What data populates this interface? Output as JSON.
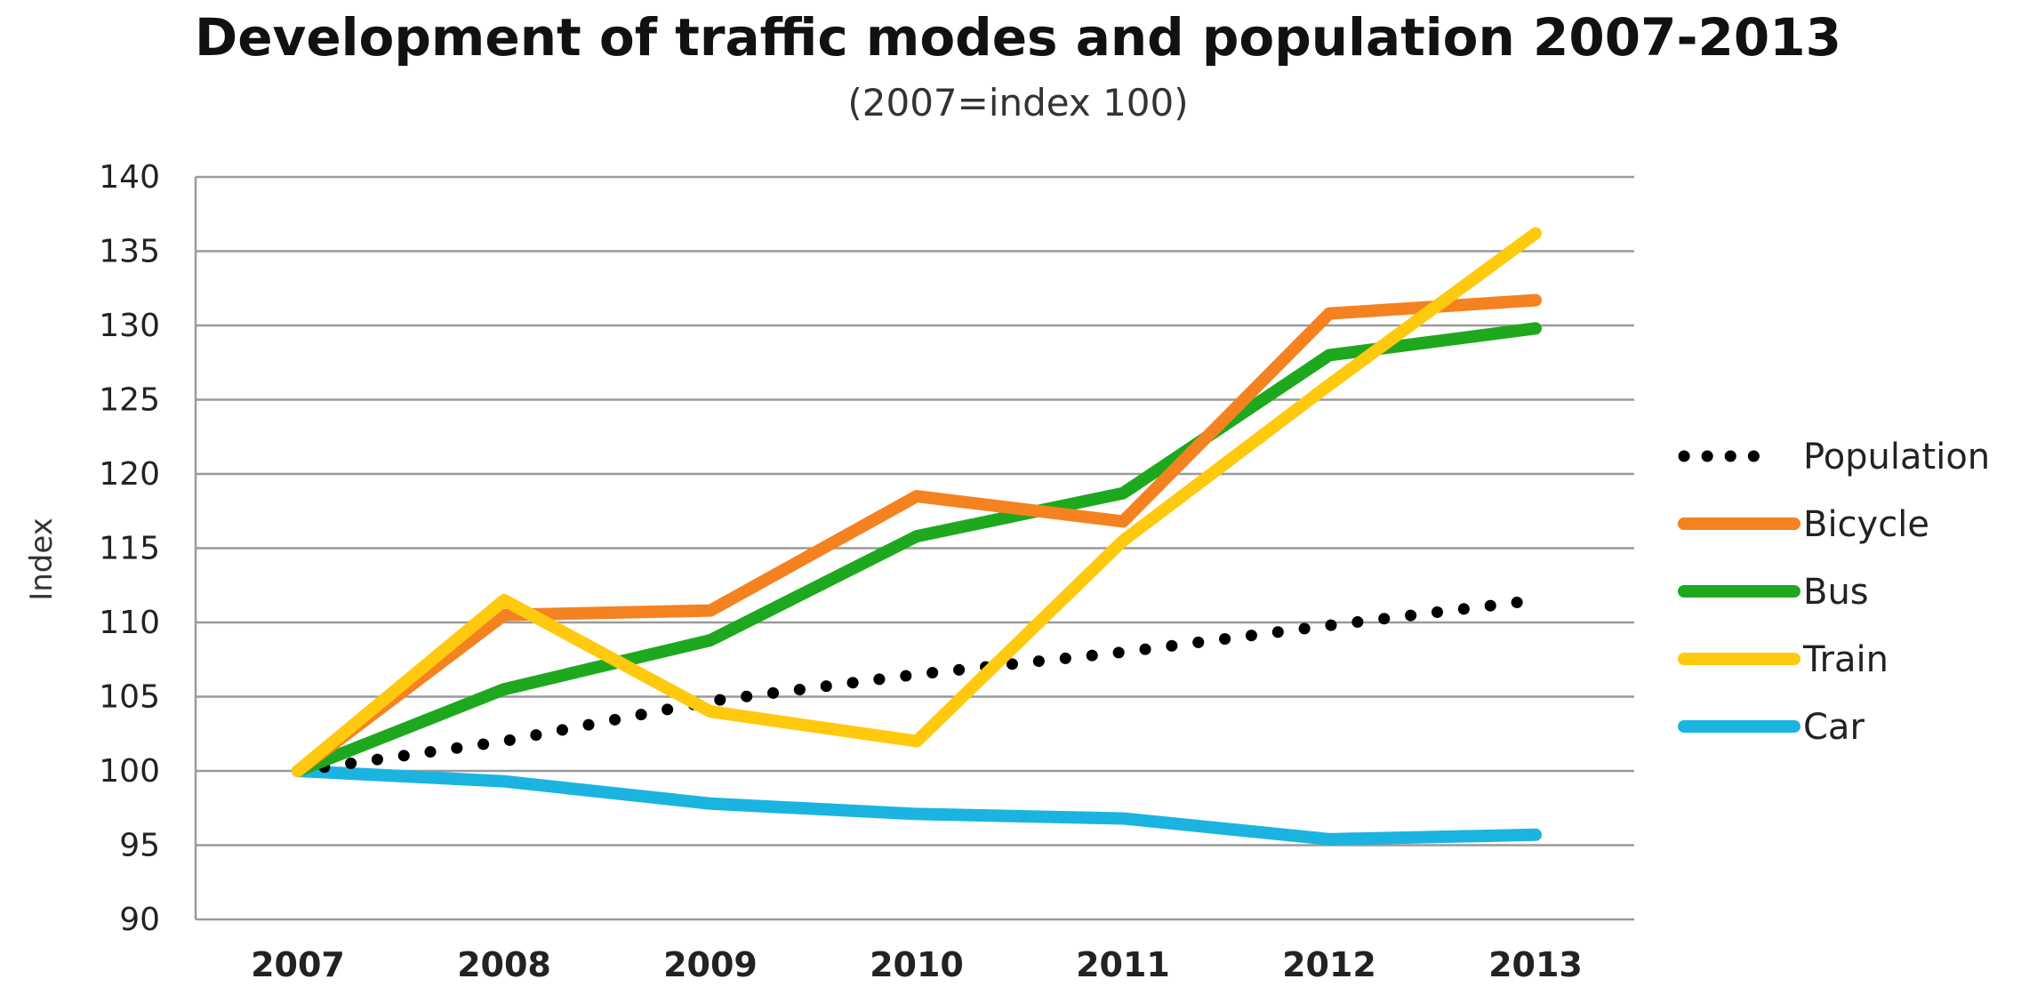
{
  "chart_data": {
    "type": "line",
    "title": "Development of traffic modes and population 2007-2013",
    "subtitle": "(2007=index 100)",
    "xlabel": "",
    "ylabel": "Index",
    "categories": [
      "2007",
      "2008",
      "2009",
      "2010",
      "2011",
      "2012",
      "2013"
    ],
    "ylim": [
      90,
      140
    ],
    "yticks": [
      90,
      95,
      100,
      105,
      110,
      115,
      120,
      125,
      130,
      135,
      140
    ],
    "grid": true,
    "legend_position": "right",
    "series": [
      {
        "name": "Population",
        "color": "#000000",
        "style": "dotted",
        "values": [
          100,
          102,
          104.7,
          106.5,
          108,
          109.8,
          111.5
        ]
      },
      {
        "name": "Bicycle",
        "color": "#F58220",
        "style": "solid",
        "values": [
          100,
          110.5,
          110.8,
          118.5,
          116.8,
          130.8,
          131.7
        ]
      },
      {
        "name": "Bus",
        "color": "#1EA81E",
        "style": "solid",
        "values": [
          100,
          105.5,
          108.8,
          115.8,
          118.7,
          128,
          129.8
        ]
      },
      {
        "name": "Train",
        "color": "#FFC90E",
        "style": "solid",
        "values": [
          100,
          111.5,
          104,
          102,
          115.5,
          126,
          136.2
        ]
      },
      {
        "name": "Car",
        "color": "#1BB4E0",
        "style": "solid",
        "values": [
          100,
          99.3,
          97.8,
          97.1,
          96.8,
          95.4,
          95.7
        ]
      }
    ]
  }
}
